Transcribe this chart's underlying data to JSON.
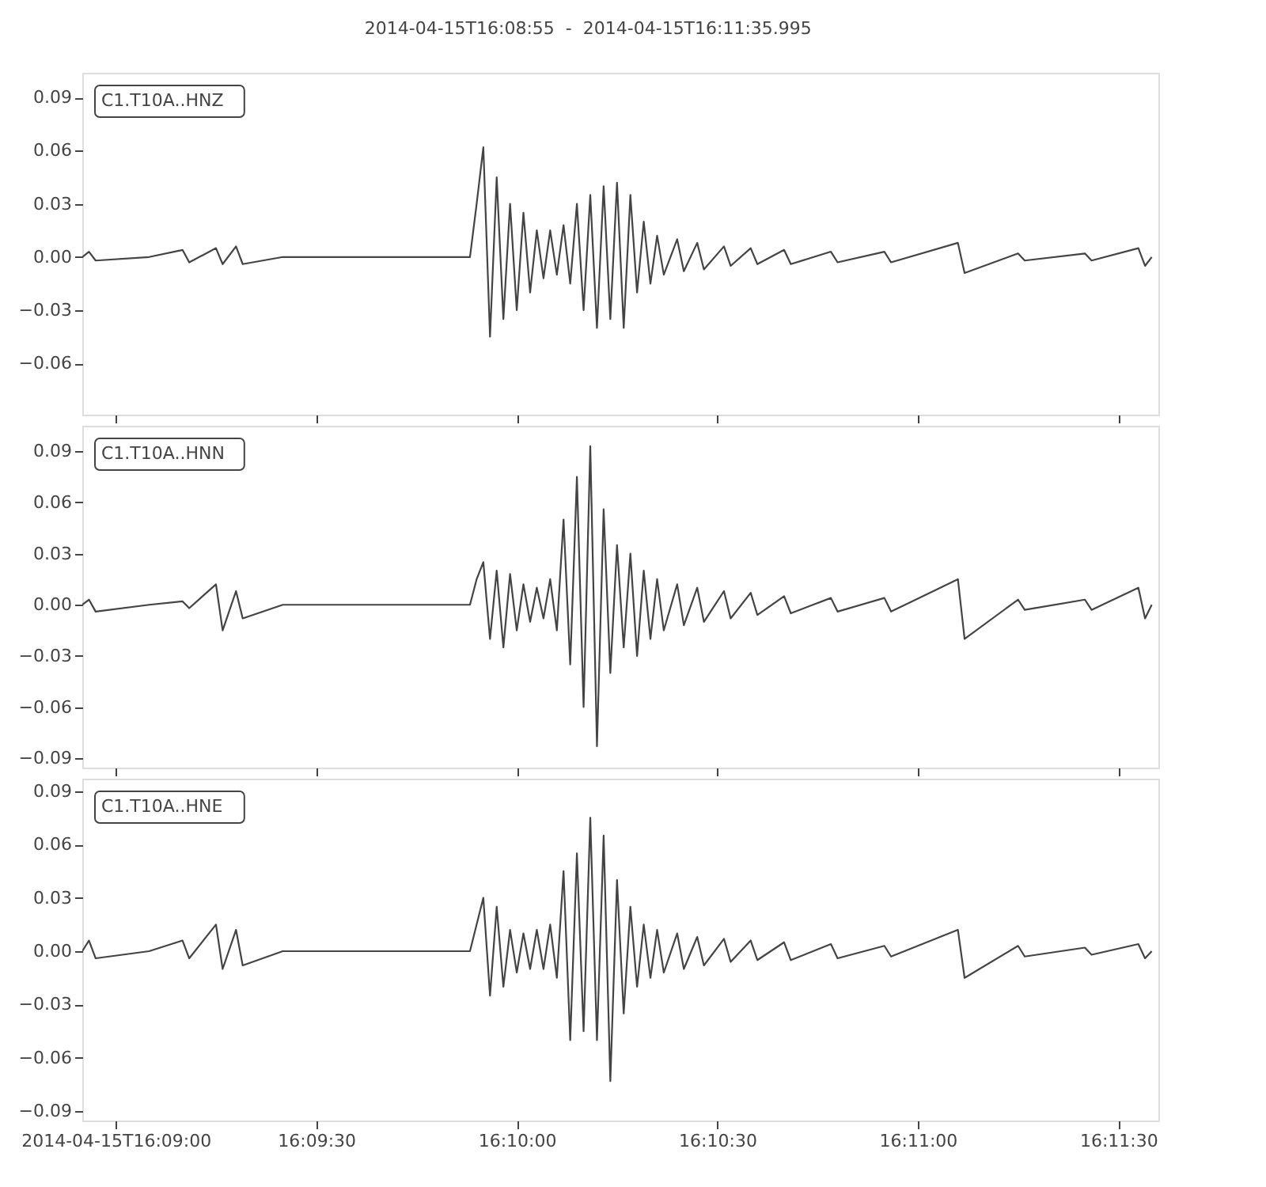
{
  "chart_data": [
    {
      "type": "line",
      "title": "2014-04-15T16:08:55  -  2014-04-15T16:11:35.995",
      "legend": "top left",
      "grid": false,
      "tick_labels": "y",
      "xlim": [
        "2014-04-15T16:08:55",
        "2014-04-15T16:11:35.995"
      ],
      "xticks": [
        {
          "value": "2014-04-15T16:09:00",
          "label": null
        },
        {
          "value": "2014-04-15T16:09:30",
          "label": null
        },
        {
          "value": "2014-04-15T16:10:00",
          "label": null
        },
        {
          "value": "2014-04-15T16:10:30",
          "label": null
        },
        {
          "value": "2014-04-15T16:11:00",
          "label": null
        },
        {
          "value": "2014-04-15T16:11:30",
          "label": null
        }
      ],
      "ylim": [
        -0.089,
        0.104
      ],
      "yticks": [
        {
          "value": -0.06,
          "label": "−0.06"
        },
        {
          "value": -0.03,
          "label": "−0.03"
        },
        {
          "value": 0,
          "label": "0.00"
        },
        {
          "value": 0.03,
          "label": "0.03"
        },
        {
          "value": 0.06,
          "label": "0.06"
        },
        {
          "value": 0.09,
          "label": "0.09"
        }
      ],
      "x": [
        "2014-04-15T16:08:55",
        "2014-04-15T16:08:56",
        "2014-04-15T16:08:57",
        "2014-04-15T16:09:05",
        "2014-04-15T16:09:10",
        "2014-04-15T16:09:11",
        "2014-04-15T16:09:15",
        "2014-04-15T16:09:16",
        "2014-04-15T16:09:18",
        "2014-04-15T16:09:19",
        "2014-04-15T16:09:25",
        "2014-04-15T16:09:40",
        "2014-04-15T16:09:53",
        "2014-04-15T16:09:54",
        "2014-04-15T16:09:55",
        "2014-04-15T16:09:56",
        "2014-04-15T16:09:57",
        "2014-04-15T16:09:58",
        "2014-04-15T16:09:59",
        "2014-04-15T16:10:00",
        "2014-04-15T16:10:01",
        "2014-04-15T16:10:02",
        "2014-04-15T16:10:03",
        "2014-04-15T16:10:04",
        "2014-04-15T16:10:05",
        "2014-04-15T16:10:06",
        "2014-04-15T16:10:07",
        "2014-04-15T16:10:08",
        "2014-04-15T16:10:09",
        "2014-04-15T16:10:10",
        "2014-04-15T16:10:11",
        "2014-04-15T16:10:12",
        "2014-04-15T16:10:13",
        "2014-04-15T16:10:14",
        "2014-04-15T16:10:15",
        "2014-04-15T16:10:16",
        "2014-04-15T16:10:17",
        "2014-04-15T16:10:18",
        "2014-04-15T16:10:19",
        "2014-04-15T16:10:20",
        "2014-04-15T16:10:21",
        "2014-04-15T16:10:22",
        "2014-04-15T16:10:24",
        "2014-04-15T16:10:25",
        "2014-04-15T16:10:27",
        "2014-04-15T16:10:28",
        "2014-04-15T16:10:31",
        "2014-04-15T16:10:32",
        "2014-04-15T16:10:35",
        "2014-04-15T16:10:36",
        "2014-04-15T16:10:40",
        "2014-04-15T16:10:41",
        "2014-04-15T16:10:47",
        "2014-04-15T16:10:48",
        "2014-04-15T16:10:55",
        "2014-04-15T16:10:56",
        "2014-04-15T16:11:06",
        "2014-04-15T16:11:07",
        "2014-04-15T16:11:15",
        "2014-04-15T16:11:16",
        "2014-04-15T16:11:25",
        "2014-04-15T16:11:26",
        "2014-04-15T16:11:33",
        "2014-04-15T16:11:34",
        "2014-04-15T16:11:35"
      ],
      "series": [
        {
          "name": "C1.T10A..HNZ",
          "color": "#444444",
          "values": [
            0,
            0.003,
            -0.002,
            0,
            0.004,
            -0.003,
            0.005,
            -0.004,
            0.006,
            -0.004,
            0,
            0,
            0,
            0.03,
            0.062,
            -0.045,
            0.045,
            -0.035,
            0.03,
            -0.03,
            0.025,
            -0.02,
            0.015,
            -0.012,
            0.015,
            -0.01,
            0.018,
            -0.015,
            0.03,
            -0.03,
            0.035,
            -0.04,
            0.04,
            -0.035,
            0.042,
            -0.04,
            0.035,
            -0.02,
            0.02,
            -0.015,
            0.012,
            -0.01,
            0.01,
            -0.008,
            0.008,
            -0.007,
            0.006,
            -0.005,
            0.005,
            -0.004,
            0.004,
            -0.004,
            0.003,
            -0.003,
            0.003,
            -0.003,
            0.008,
            -0.009,
            0.002,
            -0.002,
            0.002,
            -0.002,
            0.005,
            -0.005,
            0
          ]
        }
      ]
    },
    {
      "type": "line",
      "legend": "top left",
      "grid": false,
      "tick_labels": "y",
      "xlim": [
        "2014-04-15T16:08:55",
        "2014-04-15T16:11:35.995"
      ],
      "xticks": [
        {
          "value": "2014-04-15T16:09:00",
          "label": null
        },
        {
          "value": "2014-04-15T16:09:30",
          "label": null
        },
        {
          "value": "2014-04-15T16:10:00",
          "label": null
        },
        {
          "value": "2014-04-15T16:10:30",
          "label": null
        },
        {
          "value": "2014-04-15T16:11:00",
          "label": null
        },
        {
          "value": "2014-04-15T16:11:30",
          "label": null
        }
      ],
      "ylim": [
        -0.0955,
        0.105
      ],
      "yticks": [
        {
          "value": -0.09,
          "label": "−0.09"
        },
        {
          "value": -0.06,
          "label": "−0.06"
        },
        {
          "value": -0.03,
          "label": "−0.03"
        },
        {
          "value": 0,
          "label": "0.00"
        },
        {
          "value": 0.03,
          "label": "0.03"
        },
        {
          "value": 0.06,
          "label": "0.06"
        },
        {
          "value": 0.09,
          "label": "0.09"
        }
      ],
      "x": [
        "2014-04-15T16:08:55",
        "2014-04-15T16:08:56",
        "2014-04-15T16:08:57",
        "2014-04-15T16:09:05",
        "2014-04-15T16:09:10",
        "2014-04-15T16:09:11",
        "2014-04-15T16:09:15",
        "2014-04-15T16:09:16",
        "2014-04-15T16:09:18",
        "2014-04-15T16:09:19",
        "2014-04-15T16:09:25",
        "2014-04-15T16:09:40",
        "2014-04-15T16:09:53",
        "2014-04-15T16:09:54",
        "2014-04-15T16:09:55",
        "2014-04-15T16:09:56",
        "2014-04-15T16:09:57",
        "2014-04-15T16:09:58",
        "2014-04-15T16:09:59",
        "2014-04-15T16:10:00",
        "2014-04-15T16:10:01",
        "2014-04-15T16:10:02",
        "2014-04-15T16:10:03",
        "2014-04-15T16:10:04",
        "2014-04-15T16:10:05",
        "2014-04-15T16:10:06",
        "2014-04-15T16:10:07",
        "2014-04-15T16:10:08",
        "2014-04-15T16:10:09",
        "2014-04-15T16:10:10",
        "2014-04-15T16:10:11",
        "2014-04-15T16:10:12",
        "2014-04-15T16:10:13",
        "2014-04-15T16:10:14",
        "2014-04-15T16:10:15",
        "2014-04-15T16:10:16",
        "2014-04-15T16:10:17",
        "2014-04-15T16:10:18",
        "2014-04-15T16:10:19",
        "2014-04-15T16:10:20",
        "2014-04-15T16:10:21",
        "2014-04-15T16:10:22",
        "2014-04-15T16:10:24",
        "2014-04-15T16:10:25",
        "2014-04-15T16:10:27",
        "2014-04-15T16:10:28",
        "2014-04-15T16:10:31",
        "2014-04-15T16:10:32",
        "2014-04-15T16:10:35",
        "2014-04-15T16:10:36",
        "2014-04-15T16:10:40",
        "2014-04-15T16:10:41",
        "2014-04-15T16:10:47",
        "2014-04-15T16:10:48",
        "2014-04-15T16:10:55",
        "2014-04-15T16:10:56",
        "2014-04-15T16:11:06",
        "2014-04-15T16:11:07",
        "2014-04-15T16:11:15",
        "2014-04-15T16:11:16",
        "2014-04-15T16:11:25",
        "2014-04-15T16:11:26",
        "2014-04-15T16:11:33",
        "2014-04-15T16:11:34",
        "2014-04-15T16:11:35"
      ],
      "series": [
        {
          "name": "C1.T10A..HNN",
          "color": "#444444",
          "values": [
            0,
            0.003,
            -0.004,
            0,
            0.002,
            -0.002,
            0.012,
            -0.015,
            0.008,
            -0.008,
            0,
            0,
            0,
            0.015,
            0.025,
            -0.02,
            0.02,
            -0.025,
            0.018,
            -0.015,
            0.012,
            -0.01,
            0.01,
            -0.008,
            0.015,
            -0.015,
            0.05,
            -0.035,
            0.075,
            -0.06,
            0.093,
            -0.083,
            0.056,
            -0.04,
            0.035,
            -0.025,
            0.03,
            -0.03,
            0.02,
            -0.02,
            0.015,
            -0.015,
            0.012,
            -0.012,
            0.01,
            -0.01,
            0.008,
            -0.008,
            0.007,
            -0.006,
            0.005,
            -0.005,
            0.004,
            -0.004,
            0.004,
            -0.004,
            0.015,
            -0.02,
            0.003,
            -0.003,
            0.003,
            -0.003,
            0.01,
            -0.008,
            0
          ]
        }
      ]
    },
    {
      "type": "line",
      "legend": "top left",
      "grid": false,
      "xlim": [
        "2014-04-15T16:08:55",
        "2014-04-15T16:11:35.995"
      ],
      "xticks": [
        {
          "value": "2014-04-15T16:09:00",
          "label": "2014-04-15T16:09:00"
        },
        {
          "value": "2014-04-15T16:09:30",
          "label": "16:09:30"
        },
        {
          "value": "2014-04-15T16:10:00",
          "label": "16:10:00"
        },
        {
          "value": "2014-04-15T16:10:30",
          "label": "16:10:30"
        },
        {
          "value": "2014-04-15T16:11:00",
          "label": "16:11:00"
        },
        {
          "value": "2014-04-15T16:11:30",
          "label": "16:11:30"
        }
      ],
      "ylim": [
        -0.0952,
        0.097
      ],
      "yticks": [
        {
          "value": -0.09,
          "label": "−0.09"
        },
        {
          "value": -0.06,
          "label": "−0.06"
        },
        {
          "value": -0.03,
          "label": "−0.03"
        },
        {
          "value": 0,
          "label": "0.00"
        },
        {
          "value": 0.03,
          "label": "0.03"
        },
        {
          "value": 0.06,
          "label": "0.06"
        },
        {
          "value": 0.09,
          "label": "0.09"
        }
      ],
      "x": [
        "2014-04-15T16:08:55",
        "2014-04-15T16:08:56",
        "2014-04-15T16:08:57",
        "2014-04-15T16:09:05",
        "2014-04-15T16:09:10",
        "2014-04-15T16:09:11",
        "2014-04-15T16:09:15",
        "2014-04-15T16:09:16",
        "2014-04-15T16:09:18",
        "2014-04-15T16:09:19",
        "2014-04-15T16:09:25",
        "2014-04-15T16:09:40",
        "2014-04-15T16:09:53",
        "2014-04-15T16:09:54",
        "2014-04-15T16:09:55",
        "2014-04-15T16:09:56",
        "2014-04-15T16:09:57",
        "2014-04-15T16:09:58",
        "2014-04-15T16:09:59",
        "2014-04-15T16:10:00",
        "2014-04-15T16:10:01",
        "2014-04-15T16:10:02",
        "2014-04-15T16:10:03",
        "2014-04-15T16:10:04",
        "2014-04-15T16:10:05",
        "2014-04-15T16:10:06",
        "2014-04-15T16:10:07",
        "2014-04-15T16:10:08",
        "2014-04-15T16:10:09",
        "2014-04-15T16:10:10",
        "2014-04-15T16:10:11",
        "2014-04-15T16:10:12",
        "2014-04-15T16:10:13",
        "2014-04-15T16:10:14",
        "2014-04-15T16:10:15",
        "2014-04-15T16:10:16",
        "2014-04-15T16:10:17",
        "2014-04-15T16:10:18",
        "2014-04-15T16:10:19",
        "2014-04-15T16:10:20",
        "2014-04-15T16:10:21",
        "2014-04-15T16:10:22",
        "2014-04-15T16:10:24",
        "2014-04-15T16:10:25",
        "2014-04-15T16:10:27",
        "2014-04-15T16:10:28",
        "2014-04-15T16:10:31",
        "2014-04-15T16:10:32",
        "2014-04-15T16:10:35",
        "2014-04-15T16:10:36",
        "2014-04-15T16:10:40",
        "2014-04-15T16:10:41",
        "2014-04-15T16:10:47",
        "2014-04-15T16:10:48",
        "2014-04-15T16:10:55",
        "2014-04-15T16:10:56",
        "2014-04-15T16:11:06",
        "2014-04-15T16:11:07",
        "2014-04-15T16:11:15",
        "2014-04-15T16:11:16",
        "2014-04-15T16:11:25",
        "2014-04-15T16:11:26",
        "2014-04-15T16:11:33",
        "2014-04-15T16:11:34",
        "2014-04-15T16:11:35"
      ],
      "series": [
        {
          "name": "C1.T10A..HNE",
          "color": "#444444",
          "values": [
            0,
            0.006,
            -0.004,
            0,
            0.006,
            -0.004,
            0.015,
            -0.01,
            0.012,
            -0.008,
            0,
            0,
            0,
            0.015,
            0.03,
            -0.025,
            0.025,
            -0.02,
            0.012,
            -0.012,
            0.01,
            -0.01,
            0.012,
            -0.01,
            0.015,
            -0.015,
            0.045,
            -0.05,
            0.055,
            -0.045,
            0.075,
            -0.05,
            0.065,
            -0.073,
            0.04,
            -0.035,
            0.025,
            -0.02,
            0.015,
            -0.015,
            0.012,
            -0.012,
            0.01,
            -0.01,
            0.008,
            -0.008,
            0.007,
            -0.006,
            0.006,
            -0.005,
            0.005,
            -0.005,
            0.004,
            -0.004,
            0.003,
            -0.003,
            0.012,
            -0.015,
            0.003,
            -0.003,
            0.002,
            -0.002,
            0.004,
            -0.004,
            0
          ]
        }
      ]
    }
  ]
}
